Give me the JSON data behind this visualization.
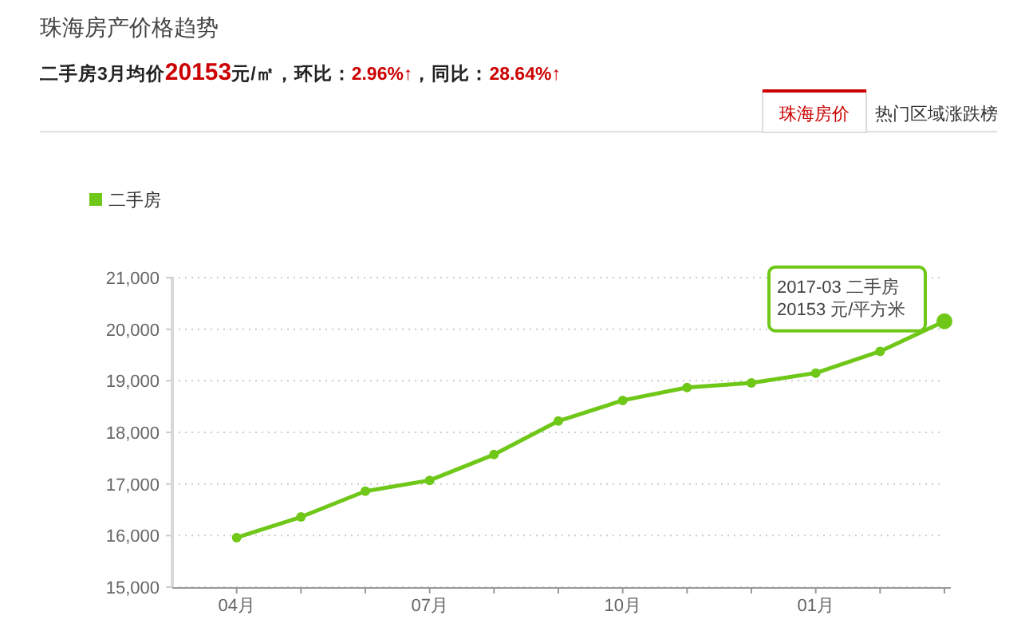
{
  "chart_data": {
    "type": "line",
    "title": "珠海房产价格趋势",
    "subtitle": "二手房3月均价20153元/㎡，环比：2.96%↑，同比：28.64%↑",
    "categories": [
      "04月",
      null,
      null,
      "07月",
      null,
      null,
      "10月",
      null,
      null,
      "01月",
      null,
      null
    ],
    "series": [
      {
        "name": "二手房",
        "color": "#6fc718",
        "values": [
          15960,
          16360,
          16860,
          17070,
          17570,
          18220,
          18620,
          18870,
          18960,
          19150,
          19570,
          20153
        ]
      }
    ],
    "ylim": [
      15000,
      21000
    ],
    "yticks": [
      {
        "value": 15000,
        "label": "15,000"
      },
      {
        "value": 16000,
        "label": "16,000"
      },
      {
        "value": 17000,
        "label": "17,000"
      },
      {
        "value": 18000,
        "label": "18,000"
      },
      {
        "value": 19000,
        "label": "19,000"
      },
      {
        "value": 20000,
        "label": "20,000"
      },
      {
        "value": 21000,
        "label": "21,000"
      }
    ],
    "grid": "y",
    "legend": "top left",
    "marker": "circle",
    "line_style": "solid",
    "annotations": [
      "2017-03 二手房\n20153 元/平方米",
      "珠海房价",
      "热门区域涨跌榜"
    ]
  }
}
